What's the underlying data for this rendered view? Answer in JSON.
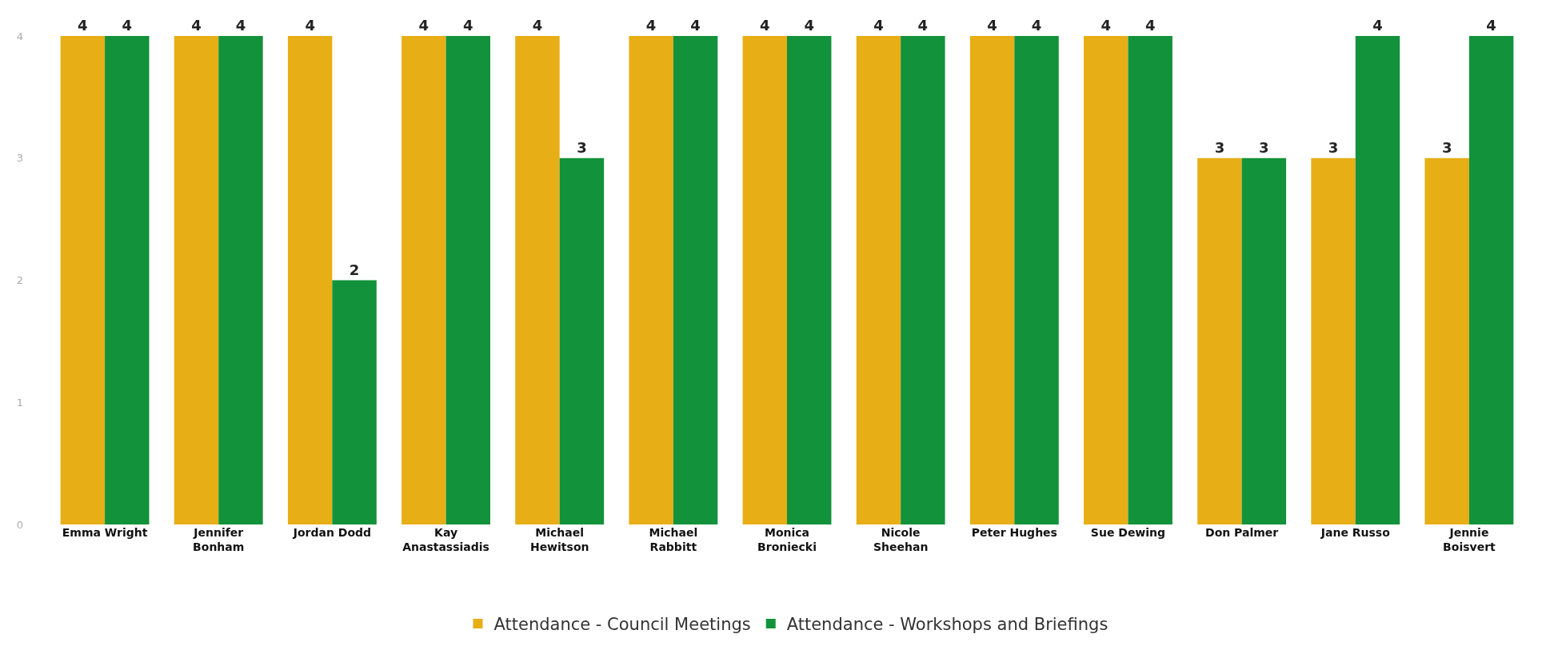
{
  "chart_data": {
    "type": "bar",
    "categories": [
      "Emma Wright",
      "Jennifer Bonham",
      "Jordan Dodd",
      "Kay Anastassiadis",
      "Michael Hewitson",
      "Michael Rabbitt",
      "Monica Broniecki",
      "Nicole Sheehan",
      "Peter Hughes",
      "Sue Dewing",
      "Don Palmer",
      "Jane Russo",
      "Jennie Boisvert"
    ],
    "series": [
      {
        "name": "Attendance - Council Meetings",
        "color": "#e8ae16",
        "values": [
          4,
          4,
          4,
          4,
          4,
          4,
          4,
          4,
          4,
          4,
          3,
          3,
          3
        ]
      },
      {
        "name": "Attendance - Workshops and Briefings",
        "color": "#12923a",
        "values": [
          4,
          4,
          2,
          4,
          3,
          4,
          4,
          4,
          4,
          4,
          3,
          4,
          4
        ]
      }
    ],
    "ylim": [
      0,
      4
    ],
    "yticks": [
      0,
      1,
      2,
      3,
      4
    ],
    "data_labels": true,
    "legend": "bottom"
  }
}
